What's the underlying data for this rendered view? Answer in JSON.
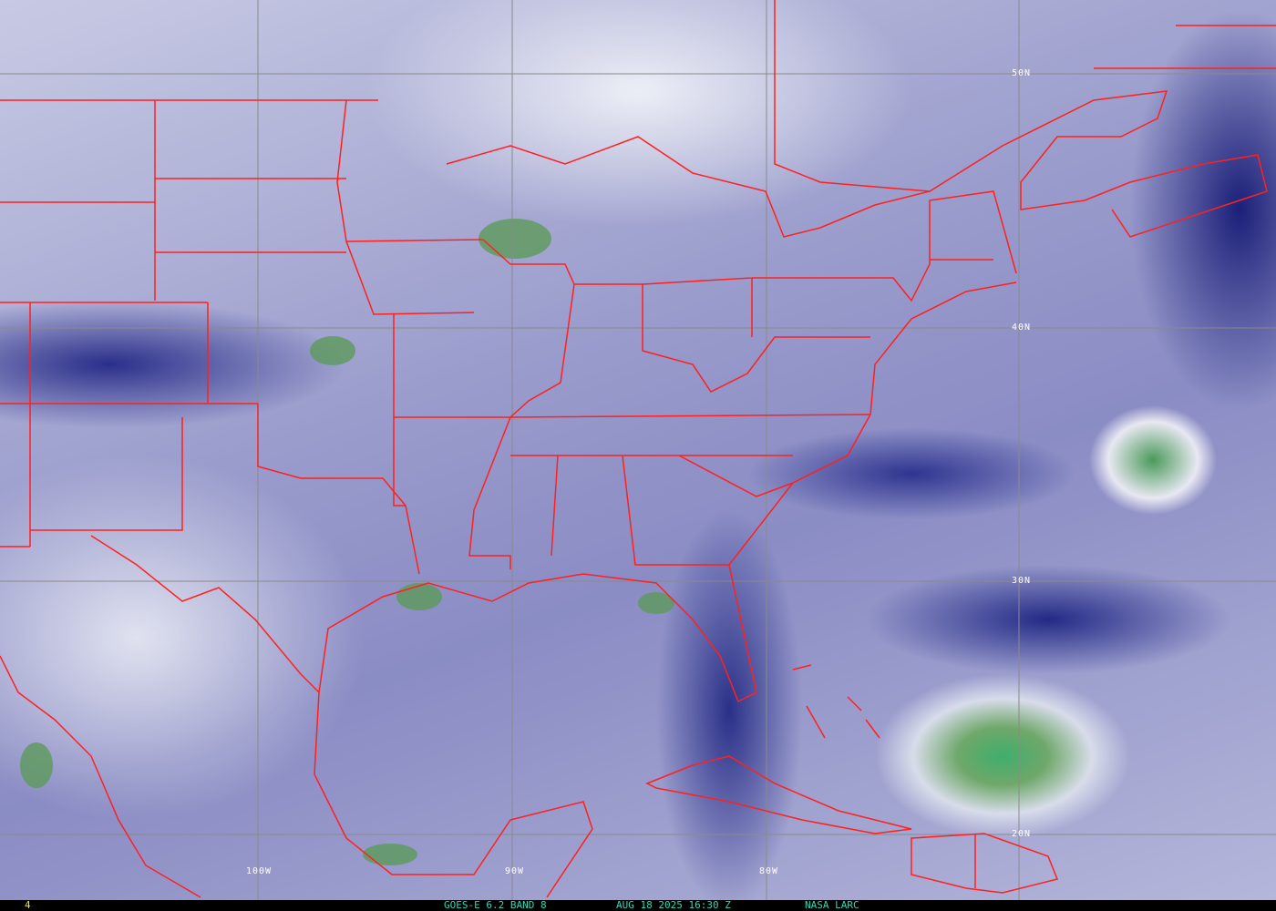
{
  "map": {
    "product": "water vapor satellite imagery",
    "colors": {
      "border": "#ff2020",
      "grid": "#8a8a8a",
      "moist_cloud": "#3fae6c",
      "dry": "#1b1f78",
      "label": "#2fd6b8"
    },
    "lat_labels": [
      "50N",
      "40N",
      "30N",
      "20N"
    ],
    "lon_labels": [
      "100W",
      "90W",
      "80W"
    ]
  },
  "footer": {
    "frame": "4",
    "satellite": "GOES-E 6.2 BAND 8",
    "timestamp": "AUG 18 2025 16:30 Z",
    "source": "NASA LARC"
  }
}
